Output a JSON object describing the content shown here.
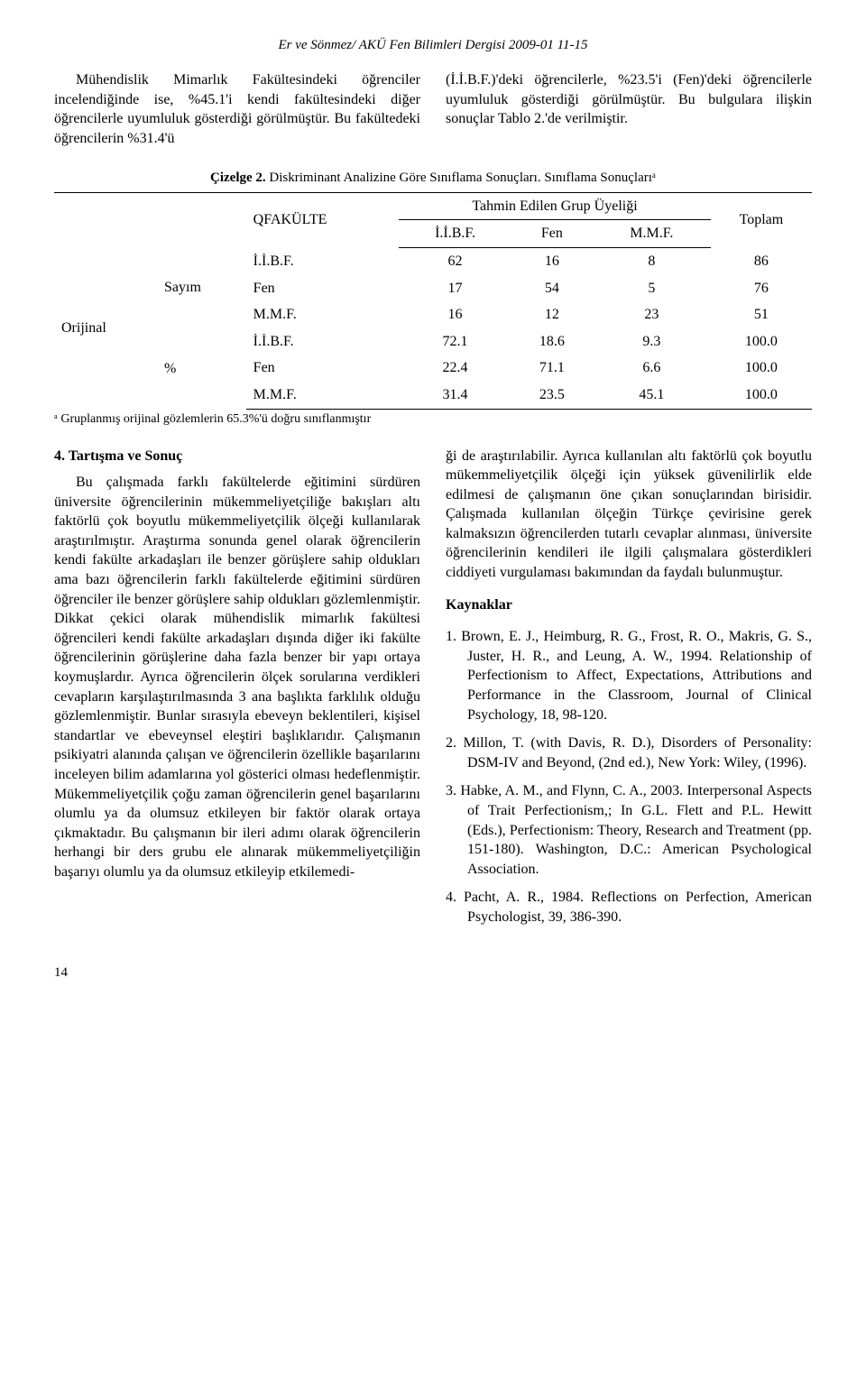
{
  "running_head": "Er ve Sönmez/ AKÜ Fen Bilimleri Dergisi 2009-01 11-15",
  "intro_left": "Mühendislik Mimarlık Fakültesindeki öğrenciler incelendiğinde ise, %45.1'i kendi fakültesindeki diğer öğrencilerle uyumluluk gösterdiği görülmüştür. Bu fakültedeki öğrencilerin %31.4'ü",
  "intro_right": "(İ.İ.B.F.)'deki öğrencilerle, %23.5'i (Fen)'deki öğrencilerle uyumluluk gösterdiği görülmüştür. Bu bulgulara ilişkin sonuçlar Tablo 2.'de verilmiştir.",
  "table_caption_bold": "Çizelge 2.",
  "table_caption_rest": " Diskriminant Analizine Göre Sınıflama Sonuçları. Sınıflama Sonuçlarıᵃ",
  "table": {
    "qfakulte_label": "QFAKÜLTE",
    "group_header": "Tahmin Edilen Grup Üyeliği",
    "toplam_label": "Toplam",
    "col_labels": [
      "İ.İ.B.F.",
      "Fen",
      "M.M.F."
    ],
    "row_stub_labels": [
      "Orijinal",
      "Sayım",
      "%"
    ],
    "fakulte_labels": [
      "İ.İ.B.F.",
      "Fen",
      "M.M.F.",
      "İ.İ.B.F.",
      "Fen",
      "M.M.F."
    ],
    "rows": [
      [
        "62",
        "16",
        "8",
        "86"
      ],
      [
        "17",
        "54",
        "5",
        "76"
      ],
      [
        "16",
        "12",
        "23",
        "51"
      ],
      [
        "72.1",
        "18.6",
        "9.3",
        "100.0"
      ],
      [
        "22.4",
        "71.1",
        "6.6",
        "100.0"
      ],
      [
        "31.4",
        "23.5",
        "45.1",
        "100.0"
      ]
    ]
  },
  "footnote": "ᵃ  Gruplanmış orijinal gözlemlerin 65.3%'ü doğru sınıflanmıştır",
  "section4_title": "4. Tartışma ve Sonuç",
  "section4_body": "Bu çalışmada farklı fakültelerde eğitimini sürdüren üniversite öğrencilerinin mükemmeliyetçiliğe bakışları altı faktörlü çok boyutlu mükemmeliyetçilik ölçeği kullanılarak araştırılmıştır. Araştırma sonunda genel olarak öğrencilerin kendi fakülte arkadaşları ile benzer görüşlere sahip oldukları ama bazı öğrencilerin farklı fakültelerde eğitimini sürdüren öğrenciler ile benzer görüşlere sahip oldukları gözlemlenmiştir. Dikkat çekici olarak mühendislik mimarlık fakültesi öğrencileri kendi fakülte arkadaşları dışında diğer iki fakülte öğrencilerinin görüşlerine daha fazla benzer bir yapı ortaya koymuşlardır. Ayrıca öğrencilerin ölçek sorularına verdikleri cevapların karşılaştırılmasında 3 ana başlıkta farklılık olduğu gözlemlenmiştir. Bunlar sırasıyla ebeveyn beklentileri, kişisel standartlar ve ebeveynsel eleştiri başlıklarıdır. Çalışmanın psikiyatri alanında çalışan ve öğrencilerin özellikle başarılarını inceleyen bilim adamlarına yol gösterici olması hedeflenmiştir. Mükemmeliyetçilik çoğu zaman öğrencilerin genel başarılarını olumlu ya da olumsuz etkileyen bir faktör olarak ortaya çıkmaktadır. Bu çalışmanın bir ileri adımı olarak öğrencilerin herhangi bir ders grubu ele alınarak mükemmeliyetçiliğin başarıyı olumlu ya da olumsuz etkileyip etkilemedi-",
  "right_continuation": "ği de araştırılabilir. Ayrıca kullanılan altı faktörlü çok boyutlu mükemmeliyetçilik ölçeği için yüksek güvenilirlik elde edilmesi de çalışmanın öne çıkan sonuçlarından birisidir. Çalışmada kullanılan ölçeğin Türkçe çevirisine gerek kalmaksızın öğrencilerden tutarlı cevaplar alınması, üniversite öğrencilerinin kendileri ile ilgili çalışmalara gösterdikleri ciddiyeti vurgulaması bakımından da faydalı bulunmuştur.",
  "kaynaklar_title": "Kaynaklar",
  "references": [
    "1. Brown, E. J., Heimburg, R. G., Frost, R. O., Makris, G. S., Juster, H. R., and Leung, A. W., 1994. Relationship of Perfectionism to Affect, Expectations, Attributions and Performance in the Classroom, Journal of Clinical Psychology, 18, 98-120.",
    "2. Millon, T. (with Davis, R. D.), Disorders of Personality: DSM-IV and Beyond, (2nd ed.), New York: Wiley, (1996).",
    "3. Habke, A. M., and Flynn, C. A., 2003. Interpersonal Aspects of Trait Perfectionism,; In G.L. Flett and P.L. Hewitt (Eds.), Perfectionism: Theory, Research and Treatment (pp. 151-180). Washington, D.C.: American Psychological Association.",
    "4. Pacht, A. R., 1984. Reflections on Perfection, American Psychologist, 39, 386-390."
  ],
  "page_number": "14"
}
